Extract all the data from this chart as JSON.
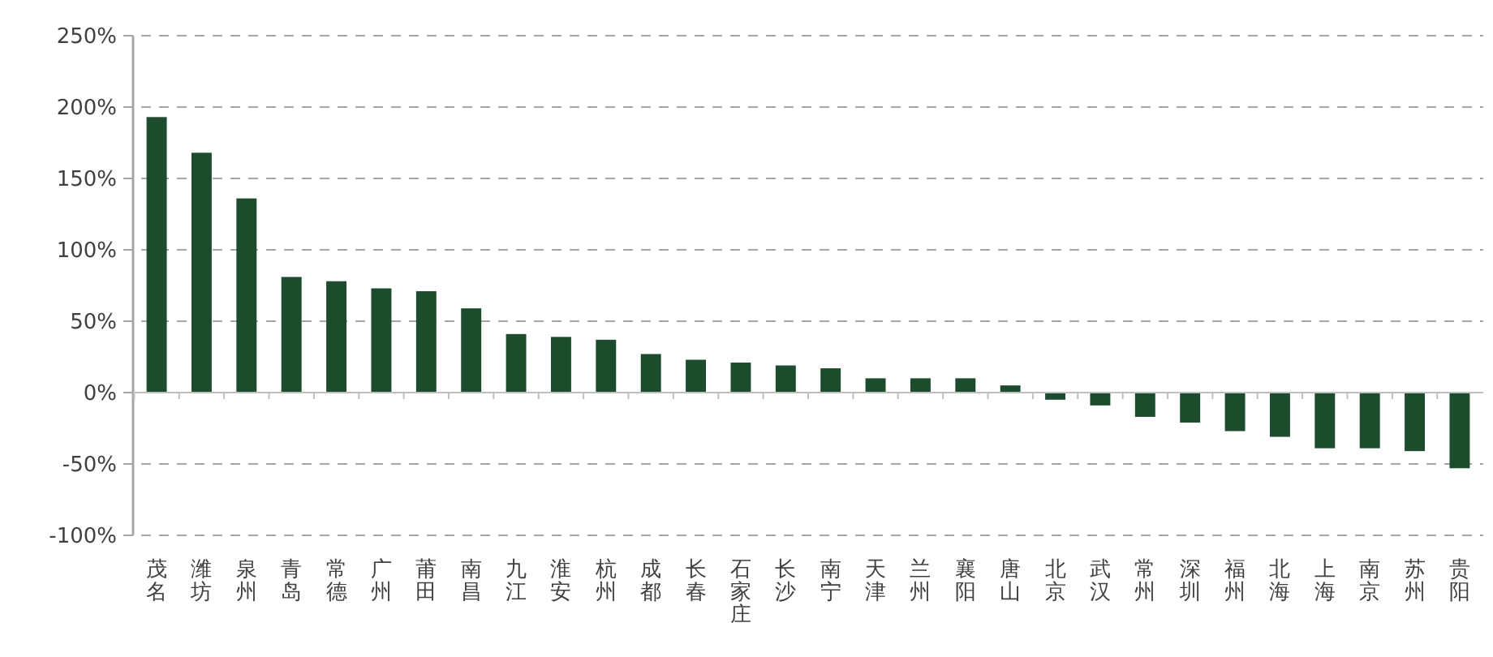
{
  "chart_data": {
    "type": "bar",
    "categories": [
      "茂名",
      "潍坊",
      "泉州",
      "青岛",
      "常德",
      "广州",
      "莆田",
      "南昌",
      "九江",
      "淮安",
      "杭州",
      "成都",
      "长春",
      "石家庄",
      "长沙",
      "南宁",
      "天津",
      "兰州",
      "襄阳",
      "唐山",
      "北京",
      "武汉",
      "常州",
      "深圳",
      "福州",
      "北海",
      "上海",
      "南京",
      "苏州",
      "贵阳"
    ],
    "values": [
      193,
      168,
      136,
      81,
      78,
      73,
      71,
      59,
      41,
      39,
      37,
      27,
      23,
      21,
      19,
      17,
      10,
      10,
      10,
      5,
      -5,
      -9,
      -17,
      -21,
      -27,
      -31,
      -39,
      -39,
      -41,
      -53
    ],
    "color": "#1b4d2c",
    "ylim": [
      -100,
      250
    ],
    "yticks": [
      {
        "value": -100,
        "label": "-100%"
      },
      {
        "value": -50,
        "label": "-50%"
      },
      {
        "value": 0,
        "label": "0%"
      },
      {
        "value": 50,
        "label": "50%"
      },
      {
        "value": 100,
        "label": "100%"
      },
      {
        "value": 150,
        "label": "150%"
      },
      {
        "value": 200,
        "label": "200%"
      },
      {
        "value": 250,
        "label": "250%"
      }
    ],
    "grid": "y"
  }
}
